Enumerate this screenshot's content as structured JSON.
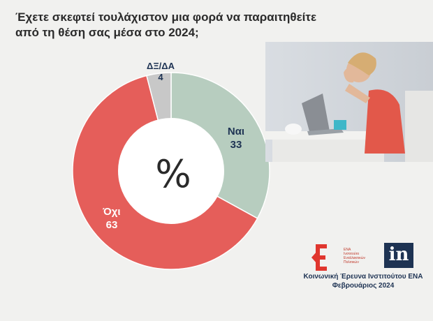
{
  "title_lines": [
    "Έχετε σκεφτεί τουλάχιστον μια φορά να παραιτηθείτε",
    "από τη θέση σας μέσα στο 2024;"
  ],
  "chart_data": {
    "type": "pie",
    "donut": true,
    "center_label": "%",
    "slices": [
      {
        "label": "Ναι",
        "value": 33,
        "color": "#b7cdbf"
      },
      {
        "label": "Όχι",
        "value": 63,
        "color": "#e55e5a"
      },
      {
        "label": "ΔΞ/ΔΑ",
        "value": 4,
        "color": "#c8c8c8"
      }
    ]
  },
  "logos": {
    "ena_lines": [
      "ΕΝΑ",
      "Ινστιτούτο",
      "Εναλλακτικών",
      "Πολιτικών"
    ],
    "in_text": "in"
  },
  "source_lines": [
    "Κοινωνική Έρευνα Ινστιτούτου ΕΝΑ",
    "Φεβρουάριος 2024"
  ]
}
